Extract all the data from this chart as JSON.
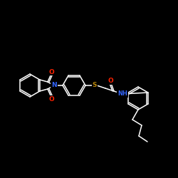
{
  "bg_color": "#000000",
  "bond_color": "#ffffff",
  "atom_colors": {
    "O": "#ff2200",
    "N": "#3366ff",
    "S": "#b8860b",
    "C": "#ffffff"
  },
  "font_size": 6.5,
  "lw": 1.1,
  "fig_size": [
    2.5,
    2.5
  ],
  "dpi": 100
}
